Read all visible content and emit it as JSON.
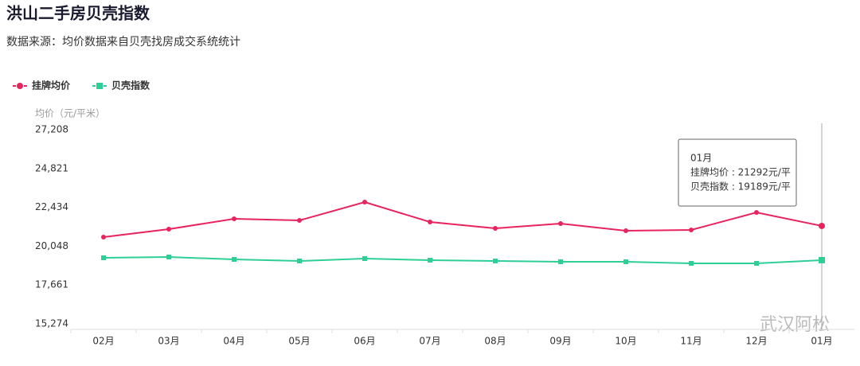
{
  "header": {
    "title": "洪山二手房贝壳指数",
    "subtitle": "数据来源：均价数据来自贝壳找房成交系统统计"
  },
  "watermark": "武汉阿松",
  "chart_data": {
    "type": "line",
    "y_label": "均价（元/平米）",
    "categories": [
      "02月",
      "03月",
      "04月",
      "05月",
      "06月",
      "07月",
      "08月",
      "09月",
      "10月",
      "11月",
      "12月",
      "01月"
    ],
    "series": [
      {
        "name": "挂牌均价",
        "color": "#e8235e",
        "marker": "circle",
        "values": [
          20605,
          21094,
          21730,
          21632,
          22757,
          21534,
          21143,
          21437,
          20996,
          21045,
          22121,
          21292
        ]
      },
      {
        "name": "贝壳指数",
        "color": "#2ecf95",
        "marker": "square",
        "values": [
          19333,
          19382,
          19236,
          19138,
          19285,
          19187,
          19138,
          19089,
          19089,
          18991,
          18991,
          19189
        ]
      }
    ],
    "ylim": [
      15274,
      27208
    ],
    "yticks": [
      {
        "value": 15274,
        "label": "15,274"
      },
      {
        "value": 17661,
        "label": "17,661"
      },
      {
        "value": 20048,
        "label": "20,048"
      },
      {
        "value": 22434,
        "label": "22,434"
      },
      {
        "value": 24821,
        "label": "24,821"
      },
      {
        "value": 27208,
        "label": "27,208"
      }
    ],
    "tooltip": {
      "index": 11,
      "title": "01月",
      "lines": [
        "挂牌均价 : 21292元/平",
        "贝壳指数 : 19189元/平"
      ]
    }
  }
}
